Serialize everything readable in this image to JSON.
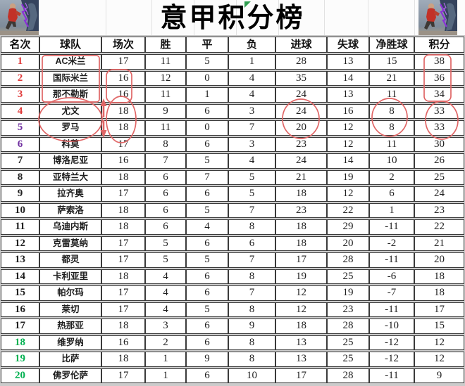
{
  "title": "意甲积分榜",
  "chart_data": {
    "type": "table",
    "title": "意甲积分榜",
    "columns": [
      "名次",
      "球队",
      "场次",
      "胜",
      "平",
      "负",
      "进球",
      "失球",
      "净胜球",
      "积分"
    ],
    "rows": [
      {
        "rank": "1",
        "team": "AC米兰",
        "played": "17",
        "win": "11",
        "draw": "5",
        "loss": "1",
        "goals_for": "28",
        "goals_against": "13",
        "goal_diff": "15",
        "points": "38",
        "rank_color": "red"
      },
      {
        "rank": "2",
        "team": "国际米兰",
        "played": "16",
        "win": "12",
        "draw": "0",
        "loss": "4",
        "goals_for": "35",
        "goals_against": "14",
        "goal_diff": "21",
        "points": "36",
        "rank_color": "red"
      },
      {
        "rank": "3",
        "team": "那不勒斯",
        "played": "16",
        "win": "11",
        "draw": "1",
        "loss": "4",
        "goals_for": "24",
        "goals_against": "13",
        "goal_diff": "11",
        "points": "34",
        "rank_color": "red"
      },
      {
        "rank": "4",
        "team": "尤文",
        "played": "18",
        "win": "9",
        "draw": "6",
        "loss": "3",
        "goals_for": "24",
        "goals_against": "16",
        "goal_diff": "8",
        "points": "33",
        "rank_color": "red"
      },
      {
        "rank": "5",
        "team": "罗马",
        "played": "18",
        "win": "11",
        "draw": "0",
        "loss": "7",
        "goals_for": "20",
        "goals_against": "12",
        "goal_diff": "8",
        "points": "33",
        "rank_color": "purple"
      },
      {
        "rank": "6",
        "team": "科莫",
        "played": "17",
        "win": "8",
        "draw": "6",
        "loss": "3",
        "goals_for": "23",
        "goals_against": "12",
        "goal_diff": "11",
        "points": "30",
        "rank_color": "purple"
      },
      {
        "rank": "7",
        "team": "博洛尼亚",
        "played": "16",
        "win": "7",
        "draw": "5",
        "loss": "4",
        "goals_for": "24",
        "goals_against": "14",
        "goal_diff": "10",
        "points": "26",
        "rank_color": "black"
      },
      {
        "rank": "8",
        "team": "亚特兰大",
        "played": "18",
        "win": "6",
        "draw": "7",
        "loss": "5",
        "goals_for": "21",
        "goals_against": "19",
        "goal_diff": "2",
        "points": "25",
        "rank_color": "black"
      },
      {
        "rank": "9",
        "team": "拉齐奥",
        "played": "17",
        "win": "6",
        "draw": "6",
        "loss": "5",
        "goals_for": "18",
        "goals_against": "12",
        "goal_diff": "6",
        "points": "24",
        "rank_color": "black"
      },
      {
        "rank": "10",
        "team": "萨索洛",
        "played": "18",
        "win": "6",
        "draw": "5",
        "loss": "7",
        "goals_for": "23",
        "goals_against": "22",
        "goal_diff": "1",
        "points": "23",
        "rank_color": "black"
      },
      {
        "rank": "11",
        "team": "乌迪内斯",
        "played": "18",
        "win": "6",
        "draw": "4",
        "loss": "8",
        "goals_for": "18",
        "goals_against": "29",
        "goal_diff": "-11",
        "points": "22",
        "rank_color": "black"
      },
      {
        "rank": "12",
        "team": "克雷莫纳",
        "played": "17",
        "win": "5",
        "draw": "6",
        "loss": "6",
        "goals_for": "18",
        "goals_against": "20",
        "goal_diff": "-2",
        "points": "21",
        "rank_color": "black"
      },
      {
        "rank": "13",
        "team": "都灵",
        "played": "17",
        "win": "5",
        "draw": "5",
        "loss": "7",
        "goals_for": "17",
        "goals_against": "28",
        "goal_diff": "-11",
        "points": "20",
        "rank_color": "black"
      },
      {
        "rank": "14",
        "team": "卡利亚里",
        "played": "18",
        "win": "4",
        "draw": "6",
        "loss": "8",
        "goals_for": "19",
        "goals_against": "25",
        "goal_diff": "-6",
        "points": "18",
        "rank_color": "black"
      },
      {
        "rank": "15",
        "team": "帕尔玛",
        "played": "17",
        "win": "4",
        "draw": "6",
        "loss": "7",
        "goals_for": "12",
        "goals_against": "19",
        "goal_diff": "-7",
        "points": "18",
        "rank_color": "black"
      },
      {
        "rank": "16",
        "team": "莱切",
        "played": "17",
        "win": "4",
        "draw": "5",
        "loss": "8",
        "goals_for": "12",
        "goals_against": "23",
        "goal_diff": "-11",
        "points": "17",
        "rank_color": "black"
      },
      {
        "rank": "17",
        "team": "热那亚",
        "played": "18",
        "win": "3",
        "draw": "6",
        "loss": "9",
        "goals_for": "18",
        "goals_against": "28",
        "goal_diff": "-10",
        "points": "15",
        "rank_color": "black"
      },
      {
        "rank": "18",
        "team": "维罗纳",
        "played": "16",
        "win": "2",
        "draw": "6",
        "loss": "8",
        "goals_for": "13",
        "goals_against": "25",
        "goal_diff": "-12",
        "points": "12",
        "rank_color": "green"
      },
      {
        "rank": "19",
        "team": "比萨",
        "played": "18",
        "win": "1",
        "draw": "9",
        "loss": "8",
        "goals_for": "13",
        "goals_against": "25",
        "goal_diff": "-12",
        "points": "12",
        "rank_color": "green"
      },
      {
        "rank": "20",
        "team": "佛罗伦萨",
        "played": "17",
        "win": "1",
        "draw": "6",
        "loss": "10",
        "goals_for": "17",
        "goals_against": "28",
        "goal_diff": "-11",
        "points": "9",
        "rank_color": "green"
      }
    ]
  },
  "colors": {
    "rank_red": "#e03a3a",
    "rank_purple": "#7030a0",
    "rank_green": "#00b050",
    "rank_black": "#1f1f1f",
    "annotation_red": "#e06666",
    "flag_green": "#2f9e4f"
  },
  "decorations": {
    "left_photo": "basketball-players-photo",
    "right_photo": "basketball-players-photo",
    "annotations": [
      "red-box-top3-teams",
      "red-box-rows2-3-played",
      "red-box-top3-points",
      "red-circle-juve-roma-teams",
      "red-circle-juve-roma-played",
      "red-circle-juve-roma-goals",
      "red-circle-juve-roma-goal-diff",
      "red-circle-juve-roma-points",
      "red-arrow-up",
      "red-arrow-down",
      "green-cell-flag"
    ]
  }
}
